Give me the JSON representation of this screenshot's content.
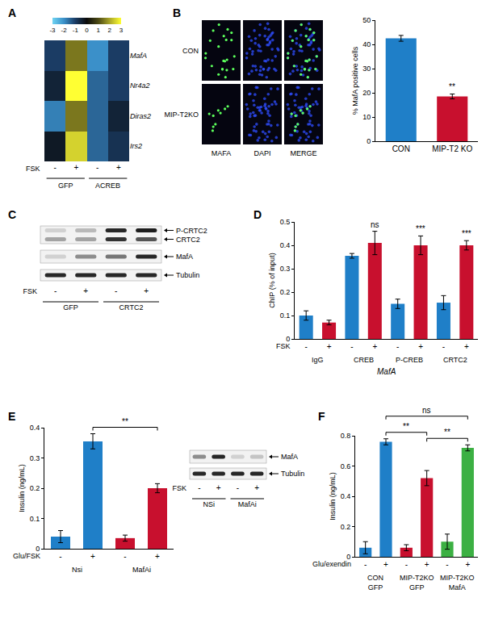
{
  "panel_labels": [
    "A",
    "B",
    "C",
    "D",
    "E",
    "F"
  ],
  "chart_data": [
    {
      "type": "heatmap",
      "categories": [
        "-",
        "+",
        "-",
        "+"
      ],
      "rows": [
        "MafA",
        "Nr4a2",
        "Diras2",
        "Irs2"
      ],
      "cells": [
        [
          -1.0,
          1.5,
          -2.0,
          -1.0
        ],
        [
          -0.5,
          3.0,
          -1.5,
          -1.0
        ],
        [
          -1.8,
          1.5,
          -1.5,
          -0.5
        ],
        [
          -0.3,
          2.5,
          -1.5,
          -0.8
        ]
      ],
      "row_label": "FSK",
      "groups": [
        {
          "label": "GFP",
          "span": [
            0,
            1
          ]
        },
        {
          "label": "ACREB",
          "span": [
            2,
            3
          ]
        }
      ],
      "colorbar_range": [
        -3,
        3
      ],
      "colorbar_ticks": [
        -3,
        -2,
        -1,
        0,
        1,
        2,
        3
      ]
    },
    {
      "type": "bar",
      "categories": [
        "CON",
        "MIP-T2 KO"
      ],
      "values": [
        42.5,
        18.5
      ],
      "errors": [
        1.2,
        1.0
      ],
      "colors": [
        "#1f7fc8",
        "#c8102e"
      ],
      "ylim": [
        0,
        50
      ],
      "yticks": [
        0,
        10,
        20,
        30,
        40,
        50
      ],
      "y_label": "% MafA positive cells",
      "annotations": [
        {
          "text": "**",
          "x": 1
        }
      ]
    },
    {
      "type": "bar",
      "categories": [
        "-",
        "+",
        "-",
        "+",
        "-",
        "+",
        "-",
        "+"
      ],
      "values": [
        0.1,
        0.07,
        0.355,
        0.41,
        0.15,
        0.4,
        0.155,
        0.4
      ],
      "errors": [
        0.02,
        0.01,
        0.01,
        0.05,
        0.02,
        0.04,
        0.03,
        0.02
      ],
      "colors": [
        "#1f7fc8",
        "#c8102e",
        "#1f7fc8",
        "#c8102e",
        "#1f7fc8",
        "#c8102e",
        "#1f7fc8",
        "#c8102e"
      ],
      "ylim": [
        0,
        0.5
      ],
      "yticks": [
        0,
        0.1,
        0.2,
        0.3,
        0.4,
        0.5
      ],
      "y_label": "ChIP (% of input)",
      "row_label": "FSK",
      "groups": [
        {
          "label": "IgG",
          "span": [
            0,
            1
          ]
        },
        {
          "label": "CREB",
          "span": [
            2,
            3
          ]
        },
        {
          "label": "P-CREB",
          "span": [
            4,
            5
          ]
        },
        {
          "label": "CRTC2",
          "span": [
            6,
            7
          ]
        }
      ],
      "x_label": "MafA",
      "annotations": [
        {
          "text": "ns",
          "x": 3
        },
        {
          "text": "***",
          "x": 5
        },
        {
          "text": "***",
          "x": 7
        }
      ]
    },
    {
      "type": "bar",
      "categories": [
        "-",
        "+",
        "-",
        "+"
      ],
      "values": [
        0.04,
        0.355,
        0.035,
        0.2
      ],
      "errors": [
        0.02,
        0.025,
        0.01,
        0.015
      ],
      "colors": [
        "#1f7fc8",
        "#1f7fc8",
        "#c8102e",
        "#c8102e"
      ],
      "ylim": [
        0,
        0.4
      ],
      "yticks": [
        0,
        0.1,
        0.2,
        0.3,
        0.4
      ],
      "y_label": "Insulin (ng/mL)",
      "row_label": "Glu/FSK",
      "groups": [
        {
          "label": "Nsi",
          "span": [
            0,
            1
          ]
        },
        {
          "label": "MafAi",
          "span": [
            2,
            3
          ]
        }
      ],
      "brackets": [
        {
          "text": "**",
          "from": 1,
          "to": 3
        }
      ]
    },
    {
      "type": "bar",
      "categories": [
        "-",
        "+",
        "-",
        "+",
        "-",
        "+"
      ],
      "values": [
        0.06,
        0.76,
        0.06,
        0.52,
        0.1,
        0.72
      ],
      "errors": [
        0.04,
        0.02,
        0.02,
        0.05,
        0.05,
        0.02
      ],
      "colors": [
        "#1f7fc8",
        "#1f7fc8",
        "#c8102e",
        "#c8102e",
        "#3cb043",
        "#3cb043"
      ],
      "ylim": [
        0,
        0.8
      ],
      "yticks": [
        0,
        0.2,
        0.4,
        0.6,
        0.8
      ],
      "y_label": "Insulin (ng/mL)",
      "row_label": "Glu/exendin",
      "groups": [
        {
          "label": [
            "CON",
            "GFP"
          ],
          "span": [
            0,
            1
          ]
        },
        {
          "label": [
            "MIP-T2KO",
            "GFP"
          ],
          "span": [
            2,
            3
          ]
        },
        {
          "label": [
            "MIP-T2KO",
            "MafA"
          ],
          "span": [
            4,
            5
          ]
        }
      ],
      "brackets": [
        {
          "text": "**",
          "from": 1,
          "to": 3
        },
        {
          "text": "**",
          "from": 3,
          "to": 5
        },
        {
          "text": "ns",
          "from": 1,
          "to": 5
        }
      ]
    }
  ],
  "micrographs": {
    "rows": [
      "CON",
      "MIP-T2KO"
    ],
    "columns": [
      "MAFA",
      "DAPI",
      "MERGE"
    ]
  },
  "blots": [
    {
      "lanes": [
        "-",
        "+",
        "-",
        "+"
      ],
      "row_label": "FSK",
      "groups": [
        {
          "label": "GFP",
          "span": [
            0,
            1
          ]
        },
        {
          "label": "CRTC2",
          "span": [
            2,
            3
          ]
        }
      ],
      "rows": [
        {
          "labels": [
            "P-CRTC2",
            "CRTC2"
          ],
          "bands": [
            [
              0.15,
              0.25,
              0.9,
              0.95
            ],
            [
              0.35,
              0.35,
              0.85,
              0.7
            ]
          ]
        },
        {
          "labels": [
            "MafA"
          ],
          "bands": [
            [
              0.15,
              0.45,
              0.55,
              0.9
            ]
          ]
        },
        {
          "labels": [
            "Tubulin"
          ],
          "bands": [
            [
              0.9,
              0.9,
              0.9,
              0.9
            ]
          ]
        }
      ]
    },
    {
      "lanes": [
        "-",
        "+",
        "-",
        "+"
      ],
      "row_label": "FSK",
      "groups": [
        {
          "label": "NSi",
          "span": [
            0,
            1
          ]
        },
        {
          "label": "MafAi",
          "span": [
            2,
            3
          ]
        }
      ],
      "rows": [
        {
          "labels": [
            "MafA"
          ],
          "bands": [
            [
              0.45,
              0.9,
              0.15,
              0.2
            ]
          ]
        },
        {
          "labels": [
            "Tubulin"
          ],
          "bands": [
            [
              0.9,
              0.9,
              0.9,
              0.9
            ]
          ]
        }
      ]
    }
  ]
}
